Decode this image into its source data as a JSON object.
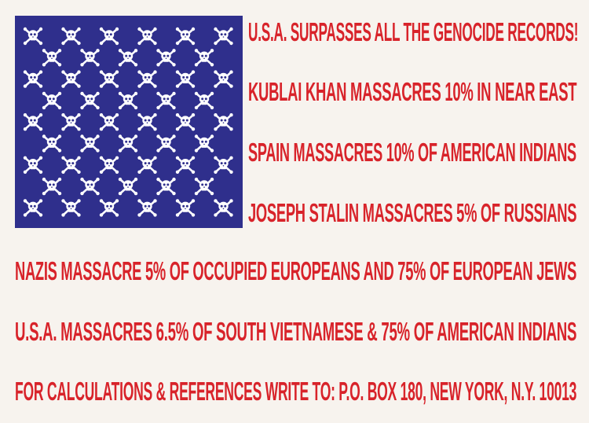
{
  "poster": {
    "lines": [
      "U.S.A. SURPASSES ALL THE GENOCIDE RECORDS!",
      "KUBLAI KHAN MASSACRES 10% IN NEAR EAST",
      "SPAIN MASSACRES 10% OF AMERICAN INDIANS",
      "JOSEPH STALIN MASSACRES 5% OF RUSSIANS",
      "NAZIS MASSACRE 5% OF OCCUPIED EUROPEANS AND 75% OF EUROPEAN JEWS",
      "U.S.A. MASSACRES 6.5% OF SOUTH VIETNAMESE & 75% OF AMERICAN INDIANS",
      "FOR CALCULATIONS & REFERENCES WRITE TO: P.O. BOX 180, NEW YORK, N.Y. 10013"
    ],
    "canton": {
      "icon": "skull-and-crossbones-icon",
      "rows": 9,
      "long_row_count": 6,
      "short_row_count": 5
    },
    "colors": {
      "background": "#f7f3ee",
      "text_red": "#d8232a",
      "canton_blue": "#2f2f8c",
      "icon_white": "#ffffff"
    }
  }
}
